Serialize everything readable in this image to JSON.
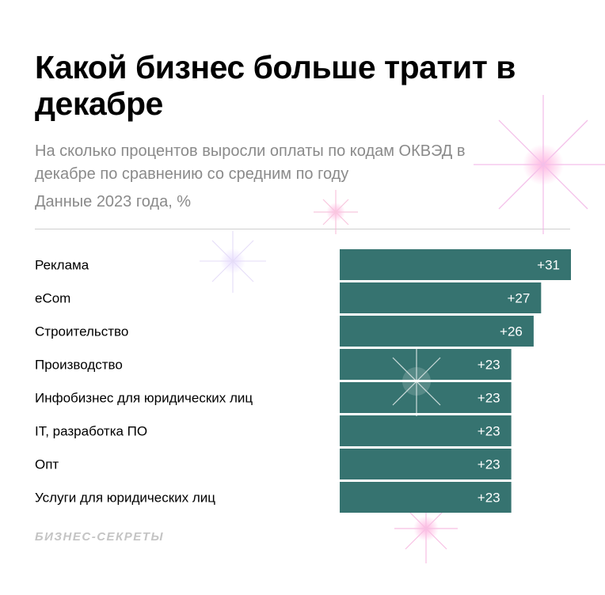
{
  "header": {
    "title": "Какой бизнес больше тратит в декабре",
    "subtitle": "На сколько процентов выросли оплаты по кодам ОКВЭД в декабре по сравнению со средним по году",
    "note": "Данные 2023 года, %"
  },
  "footer": {
    "brand": "БИЗНЕС-СЕКРЕТЫ"
  },
  "colors": {
    "bar": "#367370",
    "bar_text": "#ffffff",
    "label": "#000000"
  },
  "chart_data": {
    "type": "bar",
    "orientation": "horizontal",
    "categories": [
      "Реклама",
      "eCom",
      "Строительство",
      "Производство",
      "Инфобизнес для юридических лиц",
      "IT, разработка ПО",
      "Опт",
      "Услуги для юридических лиц"
    ],
    "values": [
      31,
      27,
      26,
      23,
      23,
      23,
      23,
      23
    ],
    "value_labels": [
      "+31",
      "+27",
      "+26",
      "+23",
      "+23",
      "+23",
      "+23",
      "+23"
    ],
    "title": "Какой бизнес больше тратит в декабре",
    "xlim": [
      0,
      31
    ],
    "grid": false,
    "legend": "none"
  }
}
